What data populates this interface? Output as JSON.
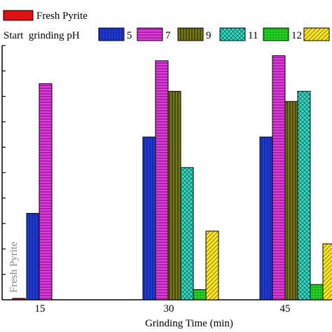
{
  "chart_data": {
    "type": "bar",
    "title": "",
    "xlabel": "Grinding Time (min)",
    "ylabel": "",
    "categories": [
      "15",
      "30",
      "45"
    ],
    "ylim": [
      0,
      100
    ],
    "legend_title": "Start  grinding pH",
    "reference": {
      "name": "Fresh Pyrite",
      "value": 0.5,
      "annotation": "Fresh Pyrite"
    },
    "series": [
      {
        "name": "5",
        "values": [
          34,
          64,
          64
        ],
        "color": "#1f3bd6",
        "pattern": "vlines"
      },
      {
        "name": "7",
        "values": [
          85,
          94,
          96
        ],
        "color": "#e23ae0",
        "pattern": "hlines"
      },
      {
        "name": "9",
        "values": [
          null,
          82,
          78
        ],
        "color": "#7a7a12",
        "pattern": "vlines"
      },
      {
        "name": "11",
        "values": [
          null,
          52,
          82
        ],
        "color": "#2fe0c8",
        "pattern": "cross"
      },
      {
        "name": "12",
        "values": [
          null,
          4,
          6
        ],
        "color": "#22d022",
        "pattern": "dots"
      },
      {
        "name": "",
        "values": [
          null,
          27,
          22
        ],
        "color": "#ffe81a",
        "pattern": "diag"
      }
    ]
  }
}
